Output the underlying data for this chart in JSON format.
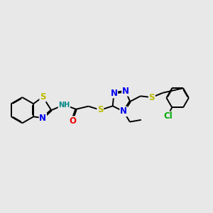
{
  "background_color": "#e8e8e8",
  "atom_colors": {
    "C": "#000000",
    "N": "#0000ee",
    "O": "#ee0000",
    "S": "#bbbb00",
    "H": "#008888",
    "Cl": "#00aa00"
  },
  "bond_color": "#000000",
  "bond_width": 1.4,
  "font_size_atoms": 8.5,
  "font_size_small": 7.0,
  "fig_width": 3.0,
  "fig_height": 3.0,
  "dpi": 100
}
